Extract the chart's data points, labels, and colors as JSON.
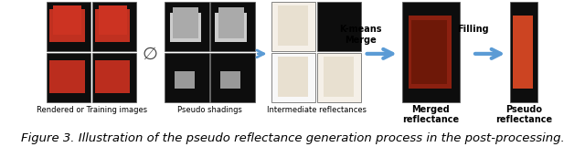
{
  "caption": "Figure 3. Illustration of the pseudo reflectance generation process in the post-processing.",
  "caption_fontsize": 9.5,
  "fig_width": 6.4,
  "fig_height": 1.61,
  "bg_color": "#ffffff",
  "label_rendered": "Rendered or Training images",
  "label_pseudo": "Pseudo shadings",
  "label_intermediate": "Intermediate reflectances",
  "label_merged": "Merged\nreflectance",
  "label_pseudo_ref": "Pseudo\nreflectance",
  "label_kmeans": "K-means\nMerge",
  "label_filling": "Filling",
  "arrow_color": "#5b9bd5",
  "text_color": "#000000",
  "label_fontsize": 6.0,
  "small_fontsize": 7.0,
  "no_symbol": "∅"
}
